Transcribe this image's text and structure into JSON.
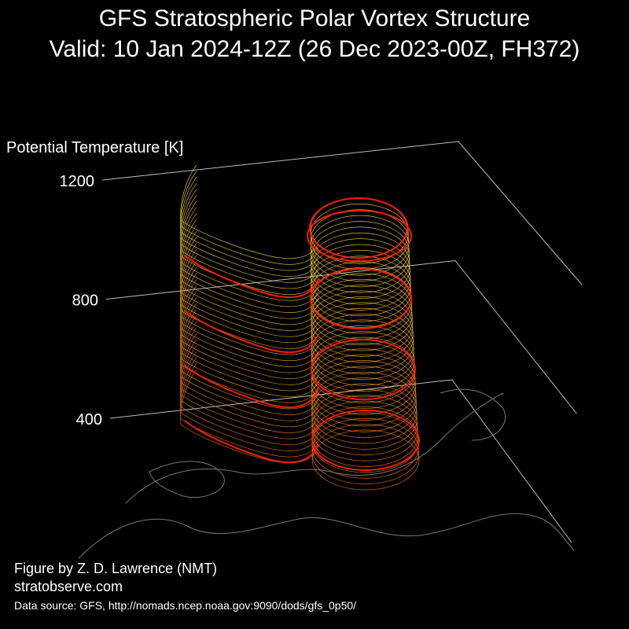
{
  "chart_data": {
    "type": "surface",
    "title": "GFS Stratospheric Polar Vortex Structure",
    "subtitle": "Valid: 10 Jan 2024-12Z  (26 Dec 2023-00Z, FH372)",
    "zlabel": "Potential Temperature [K]",
    "zlim": [
      400,
      1200
    ],
    "zticks": [
      400,
      800,
      1200
    ],
    "credit": "Figure by Z. D. Lawrence (NMT)",
    "website": "stratobserve.com",
    "source": "Data source: GFS, http://nomads.ncep.noaa.gov:9090/dods/gfs_0p50/"
  }
}
